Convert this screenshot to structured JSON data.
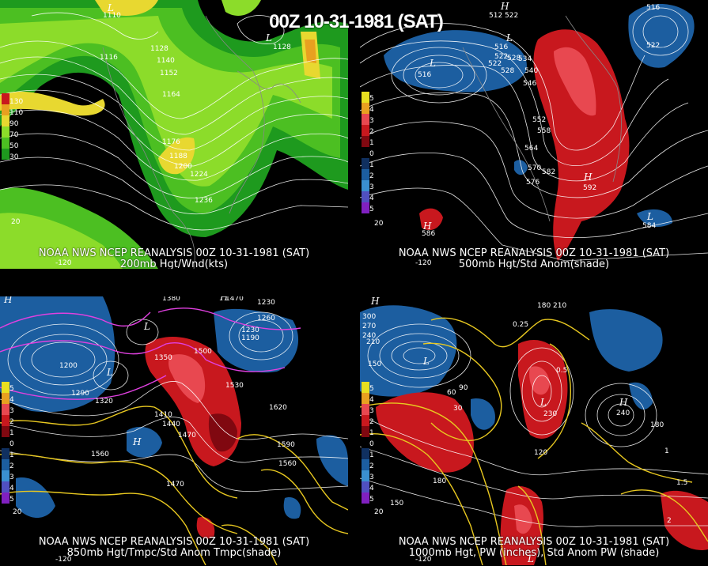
{
  "main_title": "00Z 10-31-1981 (SAT)",
  "panels": [
    {
      "line1": "NOAA NWS NCEP REANALYSIS 00Z 10-31-1981 (SAT)",
      "line2": "200mb Hgt/Wnd(kts)",
      "colorbar": [
        "130",
        "110",
        "90",
        "70",
        "50",
        "30"
      ],
      "contour_labels": [
        "1116",
        "1128",
        "1140",
        "1152",
        "1164",
        "1176",
        "1188",
        "1200",
        "1224",
        "1236",
        "1128",
        "1110"
      ],
      "lat_label": "20",
      "lon_label": "-120"
    },
    {
      "line1": "NOAA NWS NCEP REANALYSIS 00Z 10-31-1981 (SAT)",
      "line2": "500mb Hgt/Std Anom(shade)",
      "colorbar": [
        "5",
        "4",
        "3",
        "2",
        "1",
        "0",
        "1",
        "2",
        "3",
        "4",
        "5"
      ],
      "contour_labels": [
        "516",
        "522",
        "528",
        "534",
        "540",
        "546",
        "552",
        "558",
        "564",
        "570",
        "576",
        "582",
        "516",
        "522",
        "528",
        "516",
        "522",
        "592",
        "586",
        "584",
        "512",
        "522"
      ],
      "lat_label": "20",
      "lon_label": "-120"
    },
    {
      "line1": "NOAA NWS NCEP REANALYSIS 00Z 10-31-1981 (SAT)",
      "line2": "850mb Hgt/Tmpc/Std Anom Tmpc(shade)",
      "colorbar": [
        "5",
        "4",
        "3",
        "2",
        "1",
        "0",
        "1",
        "2",
        "3",
        "4",
        "5"
      ],
      "contour_labels": [
        "1380",
        "1470",
        "1230",
        "1260",
        "1350",
        "1500",
        "1530",
        "1200",
        "1290",
        "1320",
        "1410",
        "1440",
        "1470",
        "1560",
        "1590",
        "1620",
        "1560",
        "1470",
        "1230",
        "1190"
      ],
      "lat_label": "20",
      "lon_label": "-120"
    },
    {
      "line1": "NOAA NWS NCEP REANALYSIS 00Z 10-31-1981 (SAT)",
      "line2": "1000mb Hgt, PW (inches), Std Anom PW (shade)",
      "colorbar": [
        "5",
        "4",
        "3",
        "2",
        "1",
        "0",
        "1",
        "2",
        "3",
        "4",
        "5"
      ],
      "contour_labels": [
        "300",
        "270",
        "240",
        "210",
        "150",
        "180",
        "120",
        "90",
        "60",
        "30",
        "0.25",
        "0.5",
        "1",
        "1.5",
        "2",
        "210",
        "180",
        "150",
        "230",
        "240",
        "180"
      ],
      "lat_label": "20",
      "lon_label": "-120"
    }
  ],
  "colors": {
    "wind_light": "#8cdc2a",
    "wind_mid": "#4cbf22",
    "wind_dark": "#1e9a1e",
    "wind_yellow": "#e8d830",
    "wind_orange": "#e8a020",
    "anom_pos": "#c8181e",
    "anom_pos_light": "#e84850",
    "anom_neg": "#1c5ea0",
    "anom_neg_dark": "#1c4890",
    "temp_contour": "#e8c820",
    "cold_contour": "#e040e0"
  }
}
